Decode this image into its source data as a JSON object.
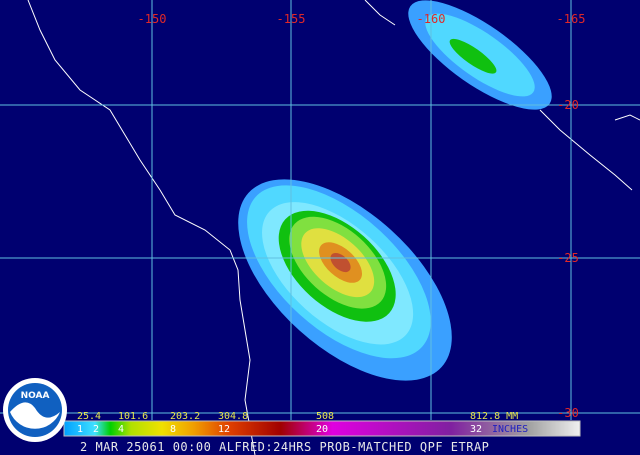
{
  "map": {
    "longitude_labels": [
      "-150",
      "-155",
      "-160",
      "-165"
    ],
    "latitude_labels": [
      "-20",
      "-25",
      "-30"
    ]
  },
  "legend": {
    "mm_labels": [
      "25.4",
      "101.6",
      "203.2",
      "304.8",
      "508",
      "812.8 MM"
    ],
    "inch_labels": [
      "1",
      "2",
      "4",
      "8",
      "12",
      "20",
      "32"
    ],
    "inch_unit": "INCHES"
  },
  "logo": "NOAA",
  "footer": "2 MAR 25061 00:00 ALFRED:24HRS PROB-MATCHED QPF ETRAP"
}
